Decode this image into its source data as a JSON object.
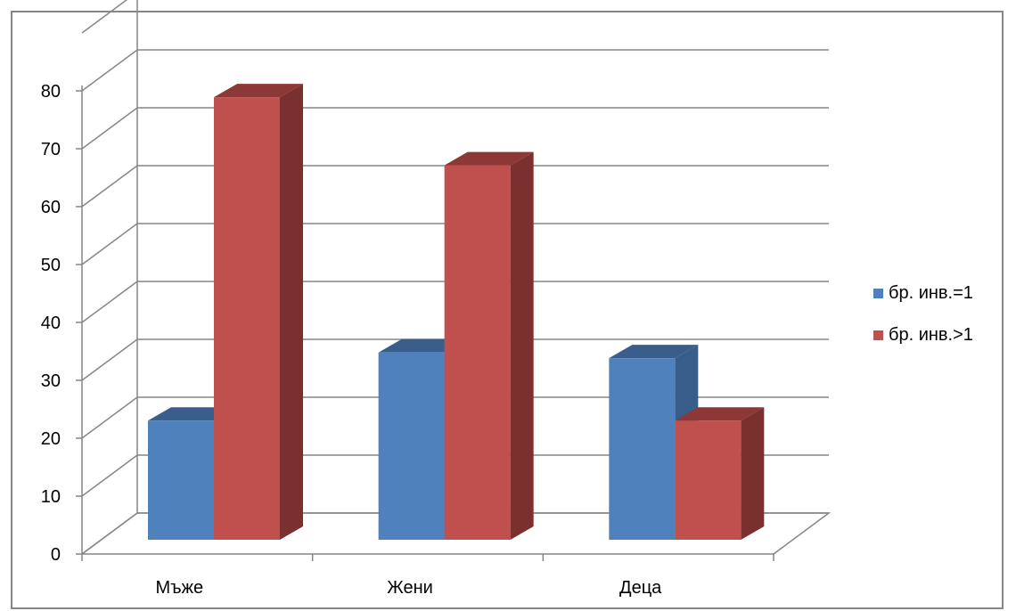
{
  "chart_data": {
    "type": "bar",
    "categories": [
      "Мъже",
      "Жени",
      "Деца"
    ],
    "series": [
      {
        "name": "бр. инв.=1",
        "values": [
          21,
          33,
          32
        ],
        "color": "#4F81BD",
        "side_color": "#385D8A",
        "top_color": "#395E8C"
      },
      {
        "name": "бр. инв.>1",
        "values": [
          78,
          66,
          21
        ],
        "color": "#C0504D",
        "side_color": "#7B3030",
        "top_color": "#8C3836"
      }
    ],
    "y_ticks": [
      "0",
      "10",
      "20",
      "30",
      "40",
      "50",
      "60",
      "70",
      "80"
    ],
    "ylim": [
      0,
      90
    ],
    "grid": true,
    "legend_position": "right"
  }
}
